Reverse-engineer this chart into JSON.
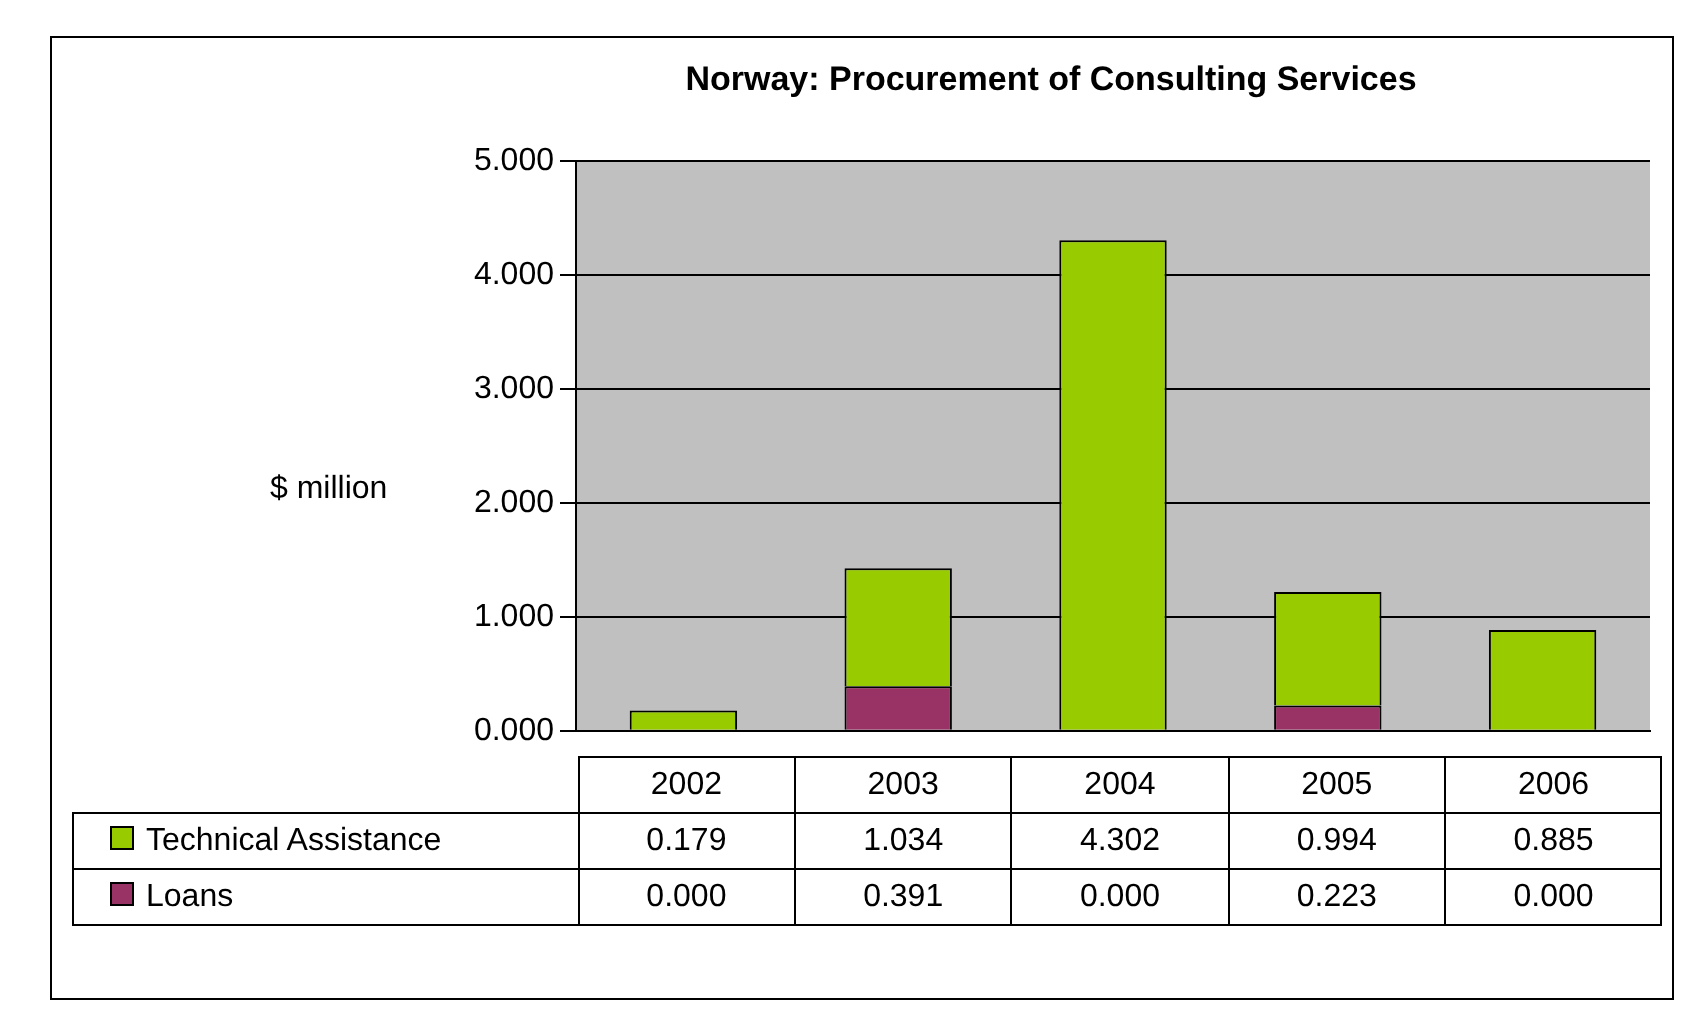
{
  "chart_data": {
    "type": "bar",
    "title": "Norway: Procurement of Consulting Services",
    "ylabel": "$ million",
    "categories": [
      "2002",
      "2003",
      "2004",
      "2005",
      "2006"
    ],
    "series": [
      {
        "name": "Loans",
        "color": "#993366",
        "values": [
          0.0,
          0.391,
          0.0,
          0.223,
          0.0
        ],
        "value_labels": [
          "0.000",
          "0.391",
          "0.000",
          "0.223",
          "0.000"
        ]
      },
      {
        "name": "Technical Assistance",
        "color": "#99cc00",
        "values": [
          0.179,
          1.034,
          4.302,
          0.994,
          0.885
        ],
        "value_labels": [
          "0.179",
          "1.034",
          "4.302",
          "0.994",
          "0.885"
        ]
      }
    ],
    "stacked": true,
    "ylim": [
      0,
      5
    ],
    "yticks": [
      {
        "value": 0,
        "label": "0.000"
      },
      {
        "value": 1,
        "label": "1.000"
      },
      {
        "value": 2,
        "label": "2.000"
      },
      {
        "value": 3,
        "label": "3.000"
      },
      {
        "value": 4,
        "label": "4.000"
      },
      {
        "value": 5,
        "label": "5.000"
      }
    ],
    "grid": "y",
    "legend": "bottom",
    "tick_labels": "y"
  }
}
